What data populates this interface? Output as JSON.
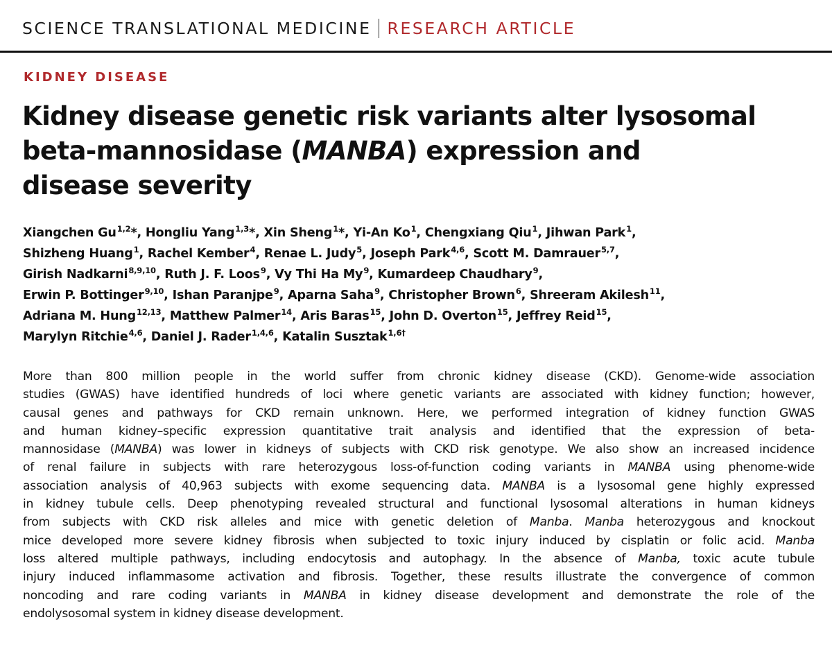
{
  "header": {
    "journal": "SCIENCE TRANSLATIONAL MEDICINE",
    "article_type": "RESEARCH ARTICLE"
  },
  "section": "KIDNEY DISEASE",
  "title": {
    "line1": "Kidney disease genetic risk variants alter lysosomal",
    "line2_before": "beta-mannosidase (",
    "line2_gene": "MANBA",
    "line2_after": ") expression and",
    "line3": "disease severity"
  },
  "authors": {
    "lines": [
      [
        {
          "name": "Xiangchen Gu",
          "sup": "1,2",
          "mark": "*",
          "sep": ", "
        },
        {
          "name": "Hongliu Yang",
          "sup": "1,3",
          "mark": "*",
          "sep": ", "
        },
        {
          "name": "Xin Sheng",
          "sup": "1",
          "mark": "*",
          "sep": ", "
        },
        {
          "name": "Yi-An Ko",
          "sup": "1",
          "mark": "",
          "sep": ", "
        },
        {
          "name": "Chengxiang Qiu",
          "sup": "1",
          "mark": "",
          "sep": ", "
        },
        {
          "name": "Jihwan Park",
          "sup": "1",
          "mark": "",
          "sep": ","
        }
      ],
      [
        {
          "name": "Shizheng Huang",
          "sup": "1",
          "mark": "",
          "sep": ", "
        },
        {
          "name": "Rachel Kember",
          "sup": "4",
          "mark": "",
          "sep": ", "
        },
        {
          "name": "Renae L. Judy",
          "sup": "5",
          "mark": "",
          "sep": ", "
        },
        {
          "name": "Joseph Park",
          "sup": "4,6",
          "mark": "",
          "sep": ", "
        },
        {
          "name": "Scott M. Damrauer",
          "sup": "5,7",
          "mark": "",
          "sep": ","
        }
      ],
      [
        {
          "name": "Girish Nadkarni",
          "sup": "8,9,10",
          "mark": "",
          "sep": ", "
        },
        {
          "name": "Ruth J. F. Loos",
          "sup": "9",
          "mark": "",
          "sep": ", "
        },
        {
          "name": "Vy Thi Ha My",
          "sup": "9",
          "mark": "",
          "sep": ", "
        },
        {
          "name": "Kumardeep Chaudhary",
          "sup": "9",
          "mark": "",
          "sep": ","
        }
      ],
      [
        {
          "name": "Erwin P. Bottinger",
          "sup": "9,10",
          "mark": "",
          "sep": ", "
        },
        {
          "name": "Ishan Paranjpe",
          "sup": "9",
          "mark": "",
          "sep": ", "
        },
        {
          "name": "Aparna Saha",
          "sup": "9",
          "mark": "",
          "sep": ", "
        },
        {
          "name": "Christopher Brown",
          "sup": "6",
          "mark": "",
          "sep": ", "
        },
        {
          "name": "Shreeram Akilesh",
          "sup": "11",
          "mark": "",
          "sep": ","
        }
      ],
      [
        {
          "name": "Adriana M. Hung",
          "sup": "12,13",
          "mark": "",
          "sep": ", "
        },
        {
          "name": "Matthew Palmer",
          "sup": "14",
          "mark": "",
          "sep": ", "
        },
        {
          "name": "Aris Baras",
          "sup": "15",
          "mark": "",
          "sep": ", "
        },
        {
          "name": "John D. Overton",
          "sup": "15",
          "mark": "",
          "sep": ", "
        },
        {
          "name": "Jeffrey Reid",
          "sup": "15",
          "mark": "",
          "sep": ","
        }
      ],
      [
        {
          "name": "Marylyn Ritchie",
          "sup": "4,6",
          "mark": "",
          "sep": ", "
        },
        {
          "name": "Daniel J. Rader",
          "sup": "1,4,6",
          "mark": "",
          "sep": ", "
        },
        {
          "name": "Katalin Susztak",
          "sup": "1,6†",
          "mark": "",
          "sep": ""
        }
      ]
    ]
  },
  "abstract": {
    "lines": [
      [
        {
          "t": "More than 800 million people in the world suffer from chronic kidney disease (CKD). Genome-wide association"
        }
      ],
      [
        {
          "t": "studies (GWAS) have identified hundreds of loci where genetic variants are associated with kidney function; however,"
        }
      ],
      [
        {
          "t": "causal genes and pathways for CKD remain unknown. Here, we performed integration of kidney function GWAS"
        }
      ],
      [
        {
          "t": "and human kidney–specific expression quantitative trait analysis and identified that the expression of beta-"
        }
      ],
      [
        {
          "t": "mannosidase ("
        },
        {
          "t": "MANBA",
          "i": true
        },
        {
          "t": ") was lower in kidneys of subjects with CKD risk genotype. We also show an increased incidence"
        }
      ],
      [
        {
          "t": "of renal failure in subjects with rare heterozygous loss-of-function coding variants in "
        },
        {
          "t": "MANBA",
          "i": true
        },
        {
          "t": " using phenome-wide"
        }
      ],
      [
        {
          "t": "association analysis of 40,963 subjects with exome sequencing data. "
        },
        {
          "t": "MANBA",
          "i": true
        },
        {
          "t": " is a lysosomal gene highly expressed"
        }
      ],
      [
        {
          "t": "in kidney tubule cells. Deep phenotyping revealed structural and functional lysosomal alterations in human kidneys"
        }
      ],
      [
        {
          "t": "from subjects with CKD risk alleles and mice with genetic deletion of "
        },
        {
          "t": "Manba",
          "i": true
        },
        {
          "t": ". "
        },
        {
          "t": "Manba",
          "i": true
        },
        {
          "t": " heterozygous and knockout"
        }
      ],
      [
        {
          "t": "mice developed more severe kidney fibrosis when subjected to toxic injury induced by cisplatin or folic acid. "
        },
        {
          "t": "Manba",
          "i": true
        }
      ],
      [
        {
          "t": "loss altered multiple pathways, including endocytosis and autophagy. In the absence of "
        },
        {
          "t": "Manba,",
          "i": true
        },
        {
          "t": " toxic acute tubule"
        }
      ],
      [
        {
          "t": "injury induced inflammasome activation and fibrosis. Together, these results illustrate the convergence of common"
        }
      ],
      [
        {
          "t": "noncoding and rare coding variants in "
        },
        {
          "t": "MANBA",
          "i": true
        },
        {
          "t": " in kidney disease development and demonstrate the role of the"
        }
      ],
      [
        {
          "t": "endolysosomal system in kidney disease development."
        }
      ]
    ]
  },
  "colors": {
    "accent": "#b0292c",
    "text": "#111111"
  }
}
